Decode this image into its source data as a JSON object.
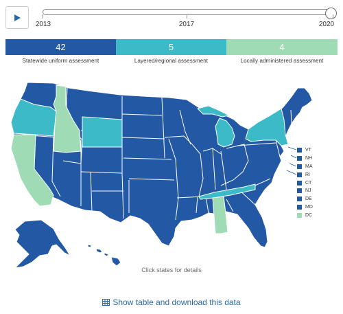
{
  "controls": {
    "play_icon": "play-icon"
  },
  "timeline": {
    "years": [
      "2013",
      "2017",
      "2020"
    ],
    "current_year": "2020"
  },
  "summary": [
    {
      "count": "42",
      "label": "Statewide uniform assessment",
      "color": "#2358a4"
    },
    {
      "count": "5",
      "label": "Layered/regional assessment",
      "color": "#3dbac7"
    },
    {
      "count": "4",
      "label": "Locally administered assessment",
      "color": "#9fdcb5"
    }
  ],
  "legend": [
    {
      "abbr": "VT",
      "color": "#2358a4"
    },
    {
      "abbr": "NH",
      "color": "#2358a4"
    },
    {
      "abbr": "MA",
      "color": "#2358a4"
    },
    {
      "abbr": "RI",
      "color": "#2358a4"
    },
    {
      "abbr": "CT",
      "color": "#2358a4"
    },
    {
      "abbr": "NJ",
      "color": "#2358a4"
    },
    {
      "abbr": "DE",
      "color": "#2358a4"
    },
    {
      "abbr": "MD",
      "color": "#2358a4"
    },
    {
      "abbr": "DC",
      "color": "#9fdcb5"
    }
  ],
  "footer": {
    "hint": "Click states for details",
    "table_link": "Show table and download this data",
    "table_icon": "table-icon"
  }
}
